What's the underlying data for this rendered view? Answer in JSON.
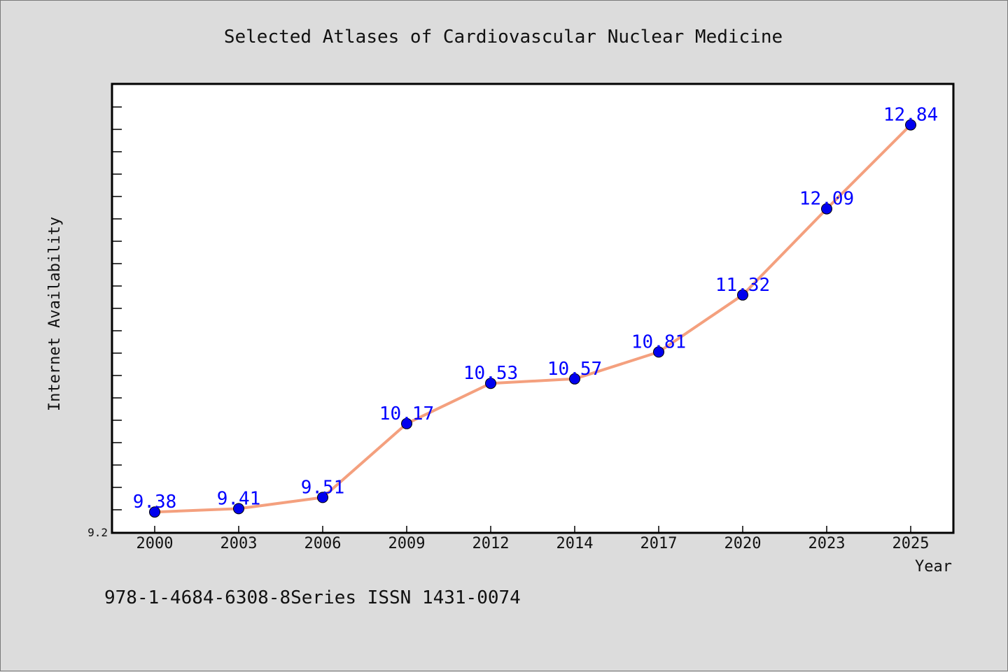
{
  "chart_data": {
    "type": "line",
    "title": "Selected Atlases of Cardiovascular Nuclear Medicine",
    "xlabel": "Year",
    "ylabel": "Internet Availability",
    "categories": [
      "2000",
      "2003",
      "2006",
      "2009",
      "2012",
      "2014",
      "2017",
      "2020",
      "2023",
      "2025"
    ],
    "series": [
      {
        "values": [
          9.38,
          9.41,
          9.51,
          10.17,
          10.53,
          10.57,
          10.81,
          11.32,
          12.09,
          12.84
        ],
        "labels": [
          "9.38",
          "9.41",
          "9.51",
          "10.17",
          "10.53",
          "10.57",
          "10.81",
          "11.32",
          "12.09",
          "12.84"
        ],
        "line_color": "#f4a07e",
        "marker_color": "#0000ee"
      }
    ],
    "y_tick_label": "9.2",
    "ylim": [
      9.2,
      13.2
    ],
    "grid": false,
    "background": "#ffffff",
    "page_background": "#dcdcdc"
  },
  "footer": {
    "text": "978-1-4684-6308-8Series ISSN 1431-0074"
  }
}
